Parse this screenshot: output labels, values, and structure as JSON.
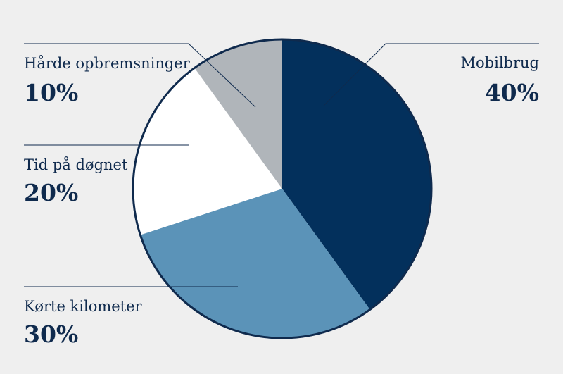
{
  "chart_data": {
    "type": "pie",
    "slices": [
      {
        "label": "Mobilbrug",
        "value": 40,
        "display": "40%",
        "color": "#03305c"
      },
      {
        "label": "Kørte kilometer",
        "value": 30,
        "display": "30%",
        "color": "#5b93b8"
      },
      {
        "label": "Tid på døgnet",
        "value": 20,
        "display": "20%",
        "color": "#ffffff"
      },
      {
        "label": "Hårde opbremsninger",
        "value": 10,
        "display": "10%",
        "color": "#b0b5ba"
      }
    ],
    "outline_color": "#0f2a4d",
    "text_color": "#0f2a4d"
  }
}
